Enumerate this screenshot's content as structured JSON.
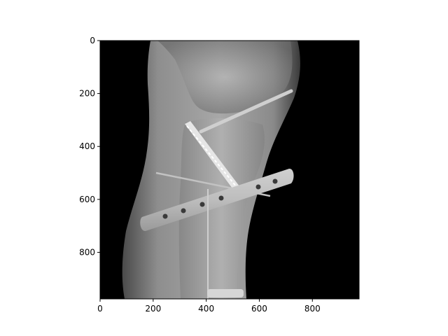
{
  "figure": {
    "background_color": "#ffffff",
    "image": {
      "description_icon": "xray-knee-icon",
      "kind": "grayscale medical x-ray",
      "colormap": "gray"
    },
    "axes": {
      "x": {
        "range": [
          0,
          976
        ],
        "ticks": [
          0,
          200,
          400,
          600,
          800
        ],
        "tick_labels": [
          "0",
          "200",
          "400",
          "600",
          "800"
        ]
      },
      "y": {
        "range": [
          0,
          976
        ],
        "inverted": true,
        "ticks": [
          0,
          200,
          400,
          600,
          800
        ],
        "tick_labels": [
          "0",
          "200",
          "400",
          "600",
          "800"
        ]
      },
      "grid": false
    }
  }
}
